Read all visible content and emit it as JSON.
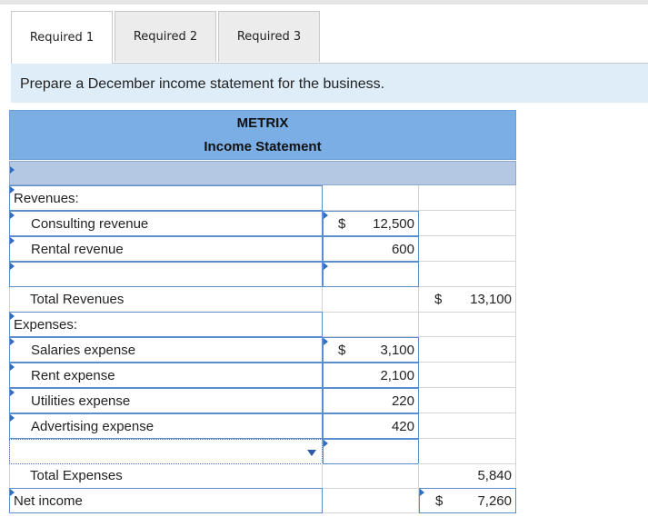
{
  "tabs": [
    {
      "label": "Required 1",
      "active": true
    },
    {
      "label": "Required 2",
      "active": false
    },
    {
      "label": "Required 3",
      "active": false
    }
  ],
  "instruction": "Prepare a December income statement for the business.",
  "statement": {
    "company": "METRIX",
    "title": "Income Statement",
    "date_value": "",
    "revenues_label": "Revenues:",
    "revenues": [
      {
        "label": "Consulting revenue",
        "dollar": "$",
        "amount": "12,500"
      },
      {
        "label": "Rental revenue",
        "dollar": "",
        "amount": "600"
      },
      {
        "label": "",
        "dollar": "",
        "amount": ""
      }
    ],
    "total_revenues": {
      "label": "Total Revenues",
      "dollar": "$",
      "amount": "13,100"
    },
    "expenses_label": "Expenses:",
    "expenses": [
      {
        "label": "Salaries expense",
        "dollar": "$",
        "amount": "3,100"
      },
      {
        "label": "Rent expense",
        "dollar": "",
        "amount": "2,100"
      },
      {
        "label": "Utilities expense",
        "dollar": "",
        "amount": "220"
      },
      {
        "label": "Advertising expense",
        "dollar": "",
        "amount": "420"
      },
      {
        "label": "",
        "dollar": "",
        "amount": ""
      }
    ],
    "total_expenses": {
      "label": "Total Expenses",
      "amount": "5,840"
    },
    "net_income": {
      "label": "Net income",
      "dollar": "$",
      "amount": "7,260"
    }
  },
  "colors": {
    "header_blue": "#7aaee5",
    "input_border": "#5b8fcc",
    "instruction_bg": "#deedf8"
  }
}
